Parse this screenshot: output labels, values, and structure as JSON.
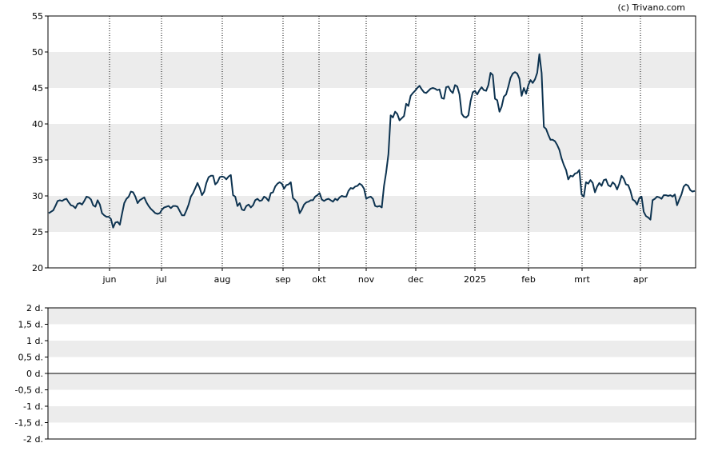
{
  "copyright": "(c) Trivano.com",
  "colors": {
    "line": "#0d3350",
    "band": "#ececec",
    "axis": "#000000",
    "grid": "#000000"
  },
  "chart_data": [
    {
      "type": "line",
      "series": [
        {
          "values": [
            27.6,
            27.8,
            28.0,
            28.6,
            29.3,
            29.4,
            29.3,
            29.5,
            29.6,
            29.1,
            28.7,
            28.6,
            28.3,
            28.9,
            29.0,
            28.8,
            29.3,
            29.9,
            29.8,
            29.5,
            28.7,
            28.5,
            29.4,
            28.8,
            27.6,
            27.3,
            27.1,
            27.1,
            26.8,
            25.6,
            26.3,
            26.4,
            26.0,
            27.5,
            29.0,
            29.6,
            29.9,
            30.6,
            30.5,
            29.9,
            29.0,
            29.4,
            29.6,
            29.8,
            29.1,
            28.6,
            28.2,
            27.9,
            27.6,
            27.5,
            27.6,
            28.1,
            28.4,
            28.5,
            28.6,
            28.3,
            28.6,
            28.6,
            28.5,
            27.9,
            27.3,
            27.3,
            28.0,
            28.8,
            29.9,
            30.4,
            31.1,
            31.8,
            31.1,
            30.1,
            30.6,
            31.8,
            32.6,
            32.8,
            32.8,
            31.6,
            31.9,
            32.6,
            32.7,
            32.6,
            32.3,
            32.7,
            32.9,
            30.1,
            29.9,
            28.6,
            29.0,
            28.1,
            28.0,
            28.6,
            28.8,
            28.4,
            28.7,
            29.4,
            29.6,
            29.3,
            29.4,
            29.9,
            29.7,
            29.3,
            30.4,
            30.5,
            31.3,
            31.7,
            31.9,
            31.7,
            31.0,
            31.5,
            31.6,
            31.9,
            29.7,
            29.4,
            29.0,
            27.6,
            28.1,
            28.8,
            29.1,
            29.2,
            29.4,
            29.4,
            29.9,
            30.1,
            30.4,
            29.5,
            29.3,
            29.5,
            29.6,
            29.4,
            29.2,
            29.6,
            29.4,
            29.8,
            30.0,
            29.9,
            29.9,
            30.7,
            31.1,
            31.0,
            31.3,
            31.4,
            31.7,
            31.5,
            31.0,
            29.6,
            29.8,
            29.9,
            29.6,
            28.6,
            28.5,
            28.6,
            28.4,
            31.4,
            33.3,
            35.8,
            41.2,
            40.9,
            41.7,
            41.4,
            40.5,
            40.8,
            41.1,
            42.8,
            42.5,
            43.9,
            44.3,
            44.6,
            45.0,
            45.3,
            44.8,
            44.4,
            44.3,
            44.6,
            44.9,
            45.0,
            44.9,
            44.7,
            44.8,
            43.6,
            43.5,
            45.1,
            45.2,
            44.6,
            44.3,
            45.4,
            45.2,
            44.1,
            41.4,
            41.0,
            40.9,
            41.2,
            43.2,
            44.4,
            44.6,
            44.1,
            44.7,
            45.1,
            44.7,
            44.6,
            45.4,
            47.1,
            46.8,
            43.5,
            43.3,
            41.7,
            42.4,
            43.8,
            44.1,
            45.2,
            46.4,
            47.0,
            47.2,
            47.0,
            46.3,
            43.9,
            45.0,
            44.2,
            45.4,
            46.1,
            45.7,
            46.2,
            47.1,
            49.7,
            47.1,
            39.6,
            39.3,
            38.5,
            37.8,
            37.8,
            37.6,
            37.1,
            36.4,
            35.2,
            34.3,
            33.6,
            32.3,
            32.8,
            32.7,
            33.1,
            33.2,
            33.6,
            30.2,
            29.9,
            31.9,
            31.7,
            32.2,
            31.8,
            30.5,
            31.3,
            31.8,
            31.4,
            32.2,
            32.3,
            31.5,
            31.3,
            31.9,
            31.6,
            30.9,
            31.7,
            32.8,
            32.4,
            31.6,
            31.5,
            30.7,
            29.5,
            29.3,
            28.8,
            29.7,
            29.9,
            27.8,
            27.2,
            27.0,
            26.7,
            29.4,
            29.6,
            29.9,
            29.8,
            29.6,
            30.1,
            30.1,
            30.0,
            30.1,
            29.9,
            30.2,
            28.7,
            29.5,
            30.2,
            31.3,
            31.6,
            31.4,
            30.8,
            30.6,
            30.7
          ]
        }
      ],
      "x_labels": [
        "jun",
        "jul",
        "aug",
        "sep",
        "okt",
        "nov",
        "dec",
        "2025",
        "feb",
        "mrt",
        "apr"
      ],
      "y_ticks": [
        55,
        50,
        45,
        40,
        35,
        30,
        25,
        20
      ],
      "ylim": [
        20,
        55
      ],
      "grid": "dotted vertical at month starts, shaded horizontal bands"
    },
    {
      "type": "line",
      "series": [],
      "y_ticks": [
        "2 d.",
        "1,5 d.",
        "1 d.",
        "0,5 d.",
        "0 d.",
        "-0,5 d.",
        "-1 d.",
        "-1,5 d.",
        "-2 d."
      ],
      "ylim": [
        -2,
        2
      ],
      "grid": "shaded horizontal bands, solid zero line"
    }
  ]
}
